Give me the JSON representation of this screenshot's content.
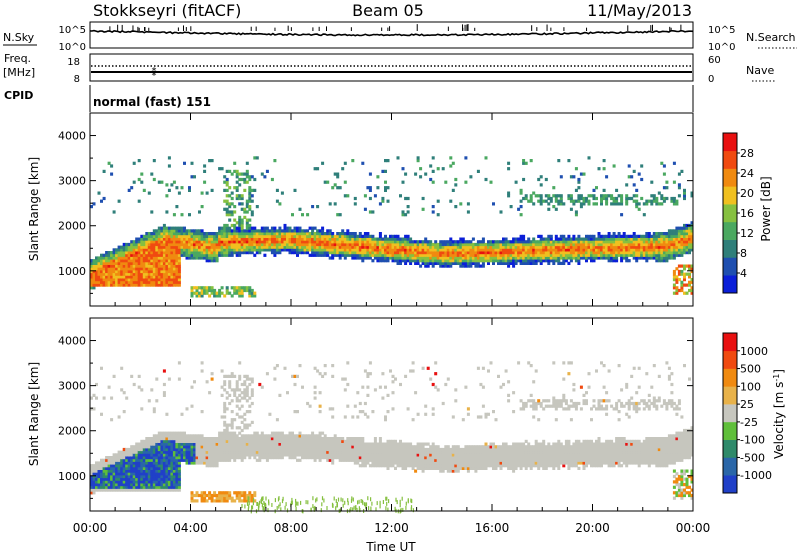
{
  "header": {
    "station": "Stokkseyri (fitACF)",
    "beam": "Beam 05",
    "date": "11/May/2013"
  },
  "noise_panel": {
    "left_label": "N.Sky",
    "left_ticks": [
      "10^5",
      "10^0"
    ],
    "right_label": "N.Search",
    "right_ticks": [
      "10^5",
      "10^0"
    ]
  },
  "freq_panel": {
    "left_label_1": "Freq.",
    "left_label_2": "[MHz]",
    "left_ticks": [
      "18",
      "8"
    ],
    "right_label": "Nave",
    "right_ticks": [
      "60",
      "0"
    ]
  },
  "cpid": {
    "label": "CPID",
    "value": "normal (fast) 151"
  },
  "colors": {
    "power_scale": [
      "#0b1fd8",
      "#1f4fb0",
      "#2f7f7a",
      "#4aa860",
      "#86c040",
      "#f0c020",
      "#f08a10",
      "#f04a10",
      "#e81010"
    ],
    "velocity_scale": [
      "#2040c8",
      "#2a66a8",
      "#2f8a6a",
      "#5fbf3a",
      "#c6c6be",
      "#e8b24a",
      "#f08a10",
      "#f04a10",
      "#e81010"
    ]
  },
  "chart_data": [
    {
      "type": "heatmap",
      "name": "power",
      "ylabel": "Slant Range [km]",
      "yticks": [
        1000,
        2000,
        3000,
        4000
      ],
      "ylim": [
        220,
        4500
      ],
      "xlim_hours": [
        0,
        24
      ],
      "colorbar": {
        "label": "Power [dB]",
        "ticks": [
          4,
          8,
          12,
          16,
          20,
          24,
          28
        ],
        "range": [
          0,
          32
        ]
      }
    },
    {
      "type": "heatmap",
      "name": "velocity",
      "ylabel": "Slant Range [km]",
      "yticks": [
        1000,
        2000,
        3000,
        4000
      ],
      "ylim": [
        220,
        4500
      ],
      "xlim_hours": [
        0,
        24
      ],
      "xlabel": "Time UT",
      "xticks": [
        "00:00",
        "04:00",
        "08:00",
        "12:00",
        "16:00",
        "20:00",
        "00:00"
      ],
      "colorbar": {
        "label": "Velocity [m s^-1]",
        "ticks": [
          "1000",
          "500",
          "100",
          "25",
          "-25",
          "-100",
          "-500",
          "-1000"
        ]
      }
    }
  ]
}
